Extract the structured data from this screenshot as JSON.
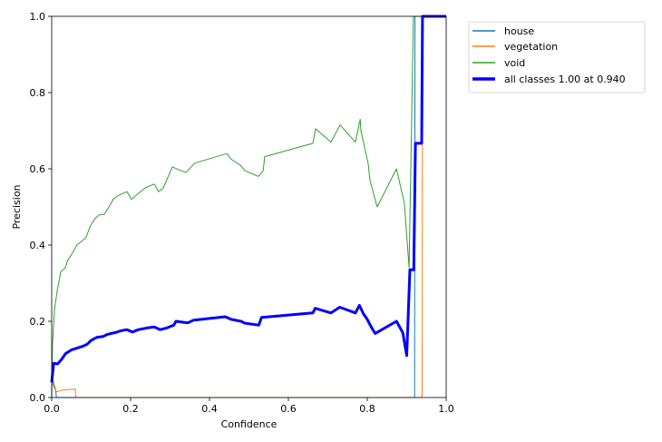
{
  "chart_data": {
    "type": "line",
    "title": "",
    "xlabel": "Confidence",
    "ylabel": "Precision",
    "xlim": [
      0.0,
      1.0
    ],
    "ylim": [
      0.0,
      1.0
    ],
    "xticks": [
      "0.0",
      "0.2",
      "0.4",
      "0.6",
      "0.8",
      "1.0"
    ],
    "yticks": [
      "0.0",
      "0.2",
      "0.4",
      "0.6",
      "0.8",
      "1.0"
    ],
    "grid": false,
    "legend_position": "outside upper right",
    "series": [
      {
        "name": "house",
        "color": "#1f77b4",
        "linewidth": 1,
        "points": [
          [
            0.0,
            0.05
          ],
          [
            0.005,
            0.03
          ],
          [
            0.01,
            0.02
          ],
          [
            0.012,
            0.0
          ],
          [
            0.92,
            0.0
          ],
          [
            0.921,
            1.0
          ],
          [
            1.0,
            1.0
          ]
        ]
      },
      {
        "name": "vegetation",
        "color": "#ff7f0e",
        "linewidth": 1,
        "points": [
          [
            0.0,
            0.06
          ],
          [
            0.005,
            0.04
          ],
          [
            0.012,
            0.015
          ],
          [
            0.03,
            0.02
          ],
          [
            0.06,
            0.022
          ],
          [
            0.061,
            0.0
          ],
          [
            0.939,
            0.0
          ],
          [
            0.94,
            1.0
          ],
          [
            1.0,
            1.0
          ]
        ]
      },
      {
        "name": "void",
        "color": "#2ca02c",
        "linewidth": 1,
        "points": [
          [
            0.0,
            0.0
          ],
          [
            0.002,
            0.14
          ],
          [
            0.007,
            0.23
          ],
          [
            0.014,
            0.28
          ],
          [
            0.023,
            0.33
          ],
          [
            0.034,
            0.34
          ],
          [
            0.041,
            0.36
          ],
          [
            0.053,
            0.38
          ],
          [
            0.064,
            0.4
          ],
          [
            0.076,
            0.41
          ],
          [
            0.087,
            0.42
          ],
          [
            0.098,
            0.45
          ],
          [
            0.11,
            0.47
          ],
          [
            0.122,
            0.48
          ],
          [
            0.133,
            0.48
          ],
          [
            0.145,
            0.5
          ],
          [
            0.156,
            0.52
          ],
          [
            0.168,
            0.53
          ],
          [
            0.191,
            0.54
          ],
          [
            0.202,
            0.52
          ],
          [
            0.225,
            0.54
          ],
          [
            0.237,
            0.55
          ],
          [
            0.26,
            0.56
          ],
          [
            0.271,
            0.54
          ],
          [
            0.283,
            0.55
          ],
          [
            0.306,
            0.605
          ],
          [
            0.34,
            0.59
          ],
          [
            0.363,
            0.615
          ],
          [
            0.444,
            0.64
          ],
          [
            0.455,
            0.625
          ],
          [
            0.478,
            0.61
          ],
          [
            0.49,
            0.595
          ],
          [
            0.524,
            0.58
          ],
          [
            0.536,
            0.595
          ],
          [
            0.54,
            0.632
          ],
          [
            0.662,
            0.667
          ],
          [
            0.669,
            0.705
          ],
          [
            0.708,
            0.67
          ],
          [
            0.731,
            0.715
          ],
          [
            0.77,
            0.67
          ],
          [
            0.782,
            0.73
          ],
          [
            0.784,
            0.7
          ],
          [
            0.802,
            0.615
          ],
          [
            0.807,
            0.57
          ],
          [
            0.825,
            0.5
          ],
          [
            0.874,
            0.6
          ],
          [
            0.894,
            0.51
          ],
          [
            0.906,
            0.34
          ],
          [
            0.917,
            1.0
          ],
          [
            1.0,
            1.0
          ]
        ]
      },
      {
        "name": "all classes 1.00 at 0.940",
        "color": "#0000ff",
        "linewidth": 3,
        "points": [
          [
            0.0,
            0.04
          ],
          [
            0.005,
            0.09
          ],
          [
            0.015,
            0.088
          ],
          [
            0.025,
            0.1
          ],
          [
            0.035,
            0.115
          ],
          [
            0.05,
            0.125
          ],
          [
            0.065,
            0.13
          ],
          [
            0.08,
            0.135
          ],
          [
            0.09,
            0.14
          ],
          [
            0.1,
            0.15
          ],
          [
            0.115,
            0.158
          ],
          [
            0.13,
            0.16
          ],
          [
            0.14,
            0.165
          ],
          [
            0.15,
            0.168
          ],
          [
            0.16,
            0.17
          ],
          [
            0.175,
            0.175
          ],
          [
            0.19,
            0.178
          ],
          [
            0.205,
            0.172
          ],
          [
            0.22,
            0.178
          ],
          [
            0.245,
            0.183
          ],
          [
            0.26,
            0.185
          ],
          [
            0.275,
            0.178
          ],
          [
            0.29,
            0.182
          ],
          [
            0.31,
            0.19
          ],
          [
            0.315,
            0.2
          ],
          [
            0.345,
            0.196
          ],
          [
            0.36,
            0.203
          ],
          [
            0.44,
            0.212
          ],
          [
            0.455,
            0.205
          ],
          [
            0.48,
            0.2
          ],
          [
            0.49,
            0.195
          ],
          [
            0.525,
            0.19
          ],
          [
            0.532,
            0.21
          ],
          [
            0.662,
            0.222
          ],
          [
            0.668,
            0.234
          ],
          [
            0.708,
            0.222
          ],
          [
            0.73,
            0.237
          ],
          [
            0.77,
            0.222
          ],
          [
            0.78,
            0.242
          ],
          [
            0.79,
            0.22
          ],
          [
            0.8,
            0.205
          ],
          [
            0.81,
            0.185
          ],
          [
            0.82,
            0.168
          ],
          [
            0.874,
            0.2
          ],
          [
            0.89,
            0.17
          ],
          [
            0.9,
            0.11
          ],
          [
            0.908,
            0.335
          ],
          [
            0.918,
            0.335
          ],
          [
            0.922,
            0.667
          ],
          [
            0.938,
            0.667
          ],
          [
            0.94,
            1.0
          ],
          [
            1.0,
            1.0
          ]
        ]
      }
    ]
  },
  "legend": {
    "items": [
      {
        "label": "house",
        "color": "#1f77b4",
        "width": 1.5
      },
      {
        "label": "vegetation",
        "color": "#ff7f0e",
        "width": 1.5
      },
      {
        "label": "void",
        "color": "#2ca02c",
        "width": 1.5
      },
      {
        "label": "all classes 1.00 at 0.940",
        "color": "#0000ff",
        "width": 3.5
      }
    ]
  }
}
